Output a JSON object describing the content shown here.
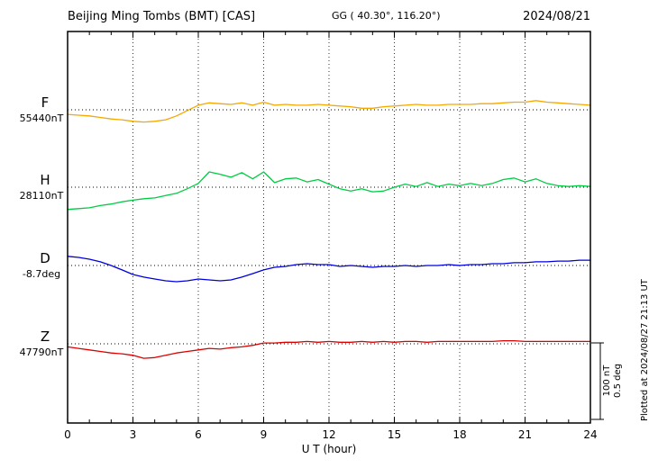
{
  "chart_data": {
    "type": "line",
    "title": "Beijing Ming Tombs (BMT)  [CAS]",
    "subtitle": "GG ( 40.30°, 116.20°)",
    "date": "2024/08/21",
    "xlabel": "U T (hour)",
    "x_range": [
      0,
      24
    ],
    "x_ticks": [
      0,
      3,
      6,
      9,
      12,
      15,
      18,
      21,
      24
    ],
    "sample_interval_hours": 0.5,
    "grid": "dotted vertical at 3h intervals, dotted horizontal baselines per component",
    "legend_position": "left margin labels",
    "series": [
      {
        "name": "F",
        "units": "nT",
        "color": "#f5a800",
        "baseline_label": "55440nT",
        "baseline_value": 55440,
        "offsets": [
          -6,
          -7,
          -8,
          -10,
          -12,
          -13,
          -15,
          -16,
          -15,
          -13,
          -8,
          -1,
          6,
          9,
          8,
          7,
          9,
          6,
          10,
          6,
          7,
          6,
          6,
          7,
          6,
          5,
          4,
          2,
          2,
          4,
          5,
          6,
          7,
          6,
          6,
          7,
          7,
          7,
          8,
          8,
          9,
          10,
          10,
          12,
          10,
          9,
          8,
          7,
          6
        ]
      },
      {
        "name": "H",
        "units": "nT",
        "color": "#00cc44",
        "baseline_label": "28110nT",
        "baseline_value": 28110,
        "offsets": [
          -29,
          -28,
          -27,
          -24,
          -22,
          -19,
          -17,
          -15,
          -14,
          -11,
          -8,
          -2,
          5,
          20,
          17,
          13,
          19,
          11,
          20,
          6,
          11,
          12,
          7,
          10,
          4,
          -2,
          -5,
          -2,
          -6,
          -5,
          0,
          4,
          1,
          6,
          1,
          4,
          2,
          5,
          2,
          5,
          10,
          12,
          7,
          11,
          5,
          2,
          1,
          2,
          1
        ]
      },
      {
        "name": "D",
        "units": "deg",
        "color": "#0000dd",
        "baseline_label": "-8.7deg",
        "baseline_value": -8.7,
        "offsets": [
          0.06,
          0.053,
          0.041,
          0.024,
          0,
          -0.029,
          -0.059,
          -0.076,
          -0.088,
          -0.1,
          -0.106,
          -0.1,
          -0.088,
          -0.094,
          -0.1,
          -0.094,
          -0.076,
          -0.053,
          -0.029,
          -0.012,
          -0.006,
          0.006,
          0.012,
          0.006,
          0.006,
          -0.006,
          0,
          -0.006,
          -0.012,
          -0.006,
          -0.006,
          0,
          -0.006,
          0,
          0,
          0.006,
          0,
          0.006,
          0.006,
          0.012,
          0.012,
          0.018,
          0.018,
          0.024,
          0.024,
          0.029,
          0.029,
          0.035,
          0.035
        ]
      },
      {
        "name": "Z",
        "units": "nT",
        "color": "#dd0000",
        "baseline_label": "47790nT",
        "baseline_value": 47790,
        "offsets": [
          -4,
          -6,
          -8,
          -10,
          -12,
          -13,
          -15,
          -19,
          -18,
          -15,
          -12,
          -10,
          -8,
          -6,
          -7,
          -5,
          -4,
          -2,
          1,
          1,
          2,
          2,
          3,
          2,
          3,
          2,
          2,
          3,
          2,
          3,
          2,
          3,
          3,
          2,
          3,
          3,
          3,
          3,
          3,
          3,
          4,
          4,
          3,
          3,
          3,
          3,
          3,
          3,
          3
        ]
      }
    ],
    "scale_bar": {
      "label_nT": "100 nT",
      "label_deg": "0.5 deg",
      "nT": 100,
      "deg": 0.5
    },
    "plotted_at": "Plotted at 2024/08/27 21:13 UT"
  }
}
